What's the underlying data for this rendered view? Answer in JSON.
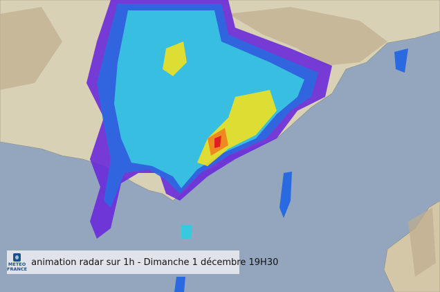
{
  "caption": {
    "text": "animation radar sur 1h - Dimanche 1 décembre 19H30"
  },
  "logo": {
    "line1": "METEO",
    "line2": "FRANCE"
  },
  "colors": {
    "sea": "#93a6bd",
    "land": "#d9d1b6",
    "mountain": "#b9a98c",
    "radar_light": "#38c8e0",
    "radar_blue": "#2a6ae0",
    "radar_purple": "#6a2ad8",
    "radar_yellow": "#f0e020",
    "radar_orange": "#f08a20",
    "radar_red": "#e02020"
  }
}
